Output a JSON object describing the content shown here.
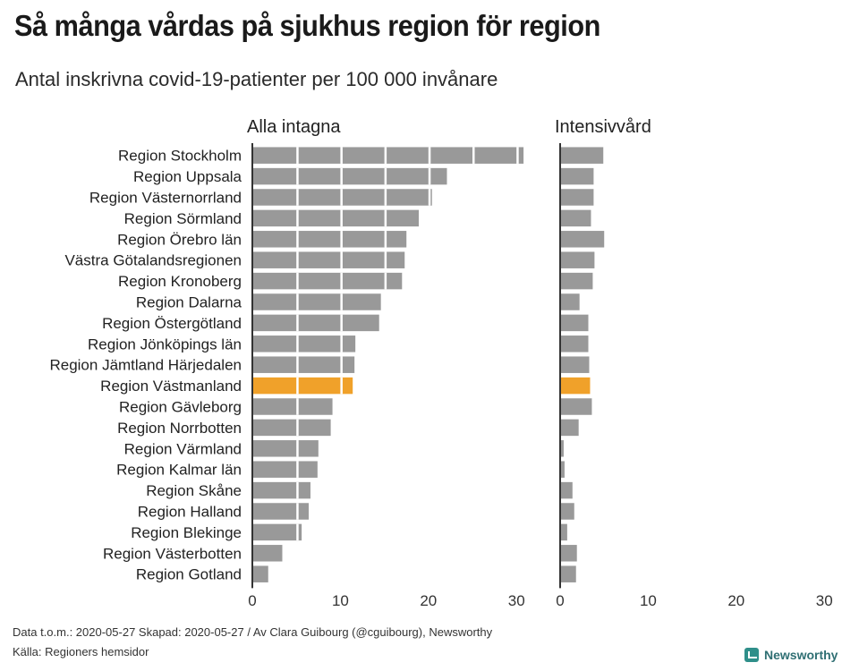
{
  "header": {
    "title": "Så många vårdas på sjukhus region för region",
    "subtitle": "Antal inskrivna covid-19-patienter per 100 000 invånare"
  },
  "chart_data": {
    "type": "bar",
    "orientation": "horizontal",
    "categories": [
      "Region Stockholm",
      "Region Uppsala",
      "Region Västernorrland",
      "Region Sörmland",
      "Region Örebro län",
      "Västra Götalandsregionen",
      "Region Kronoberg",
      "Region Dalarna",
      "Region Östergötland",
      "Region Jönköpings län",
      "Region Jämtland Härjedalen",
      "Region Västmanland",
      "Region Gävleborg",
      "Region Norrbotten",
      "Region Värmland",
      "Region Kalmar län",
      "Region Skåne",
      "Region Halland",
      "Region Blekinge",
      "Region Västerbotten",
      "Region Gotland"
    ],
    "highlight": "Region Västmanland",
    "series": [
      {
        "name": "Alla intagna",
        "values": [
          30.7,
          22.0,
          20.3,
          18.8,
          17.4,
          17.2,
          16.9,
          14.5,
          14.3,
          11.6,
          11.5,
          11.3,
          9.0,
          8.8,
          7.4,
          7.3,
          6.5,
          6.3,
          5.5,
          3.3,
          1.7
        ],
        "ticks": [
          0,
          10,
          20,
          30
        ],
        "xlim": [
          0,
          31
        ]
      },
      {
        "name": "Intensivvård",
        "values": [
          4.8,
          3.7,
          3.7,
          3.4,
          4.9,
          3.8,
          3.6,
          2.1,
          3.1,
          3.1,
          3.2,
          3.3,
          3.5,
          2.0,
          0.3,
          0.4,
          1.3,
          1.5,
          0.7,
          1.8,
          1.7
        ],
        "ticks": [
          0,
          10,
          20,
          30
        ],
        "xlim": [
          0,
          31
        ]
      }
    ],
    "colors": {
      "bar": "#999999",
      "highlight": "#f0a12a",
      "axis": "#333333"
    },
    "grid": false,
    "legend": "none"
  },
  "footer": {
    "credit": "Data t.o.m.: 2020-05-27 Skapad: 2020-05-27 / Av Clara Guibourg (@cguibourg), Newsworthy",
    "source": "Källa: Regioners hemsidor",
    "brand": "Newsworthy"
  }
}
